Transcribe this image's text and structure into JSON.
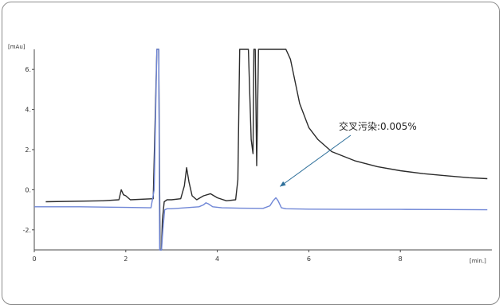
{
  "chart_data": {
    "type": "line",
    "title": "",
    "x_unit": "[min.]",
    "y_unit": "[mAu]",
    "xlim": [
      0,
      10
    ],
    "ylim": [
      -3,
      7
    ],
    "x_ticks": [
      0,
      2,
      4,
      6,
      8
    ],
    "y_ticks": [
      6,
      4,
      2,
      0,
      -2
    ],
    "x_tick_labels": [
      "0",
      "2",
      "4",
      "6",
      "8"
    ],
    "y_tick_labels": [
      "6.",
      "4.",
      "2.",
      "0.",
      "-2."
    ],
    "annotation": {
      "text": "交叉污染:0.005%",
      "target": [
        5.3,
        0.0
      ],
      "text_at": [
        6.8,
        2.6
      ]
    },
    "series": [
      {
        "color": "#2b2b2b",
        "x": [
          0.25,
          1.5,
          1.85,
          1.9,
          1.95,
          2.0,
          2.1,
          2.6,
          2.68,
          2.72,
          2.75,
          2.78,
          2.8,
          2.84,
          2.9,
          3.0,
          3.2,
          3.28,
          3.33,
          3.38,
          3.45,
          3.55,
          3.7,
          3.85,
          4.0,
          4.2,
          4.4,
          4.45,
          4.49,
          4.53,
          4.6,
          4.65,
          4.68,
          4.74,
          4.78,
          4.8,
          4.83,
          4.86,
          4.9,
          4.95,
          5.0,
          5.1,
          5.15,
          5.22,
          5.3,
          5.4,
          5.5,
          5.6,
          5.8,
          6.0,
          6.2,
          6.5,
          7.0,
          7.5,
          8.0,
          8.5,
          9.0,
          9.5,
          9.9
        ],
        "y": [
          -0.6,
          -0.55,
          -0.5,
          0.0,
          -0.25,
          -0.3,
          -0.5,
          -0.45,
          7.0,
          7.0,
          -3.0,
          -3.0,
          -1.5,
          -0.6,
          -0.5,
          -0.5,
          -0.45,
          0.2,
          1.1,
          0.4,
          -0.3,
          -0.5,
          -0.3,
          -0.2,
          -0.4,
          -0.55,
          -0.5,
          0.5,
          7.0,
          7.0,
          7.0,
          7.0,
          7.0,
          2.5,
          1.8,
          7.0,
          7.0,
          1.2,
          7.0,
          7.0,
          7.0,
          7.0,
          7.0,
          7.0,
          7.0,
          7.0,
          7.0,
          6.5,
          4.3,
          3.1,
          2.5,
          1.9,
          1.45,
          1.15,
          0.95,
          0.8,
          0.7,
          0.6,
          0.55
        ]
      },
      {
        "color": "#6f86d6",
        "x": [
          0.0,
          1.0,
          2.0,
          2.55,
          2.62,
          2.68,
          2.72,
          2.74,
          2.76,
          2.78,
          2.81,
          2.85,
          2.9,
          3.0,
          3.3,
          3.6,
          3.7,
          3.75,
          3.8,
          3.9,
          4.1,
          4.5,
          5.0,
          5.15,
          5.22,
          5.28,
          5.33,
          5.4,
          5.5,
          6.0,
          7.0,
          8.0,
          9.0,
          9.9
        ],
        "y": [
          -0.85,
          -0.85,
          -0.88,
          -0.9,
          0.0,
          7.0,
          7.0,
          -3.0,
          -3.0,
          -3.0,
          -2.0,
          -1.0,
          -0.95,
          -0.95,
          -0.9,
          -0.85,
          -0.75,
          -0.65,
          -0.7,
          -0.85,
          -0.9,
          -0.92,
          -0.93,
          -0.8,
          -0.55,
          -0.4,
          -0.55,
          -0.9,
          -0.95,
          -0.97,
          -0.98,
          -0.98,
          -0.99,
          -1.0
        ]
      }
    ]
  }
}
